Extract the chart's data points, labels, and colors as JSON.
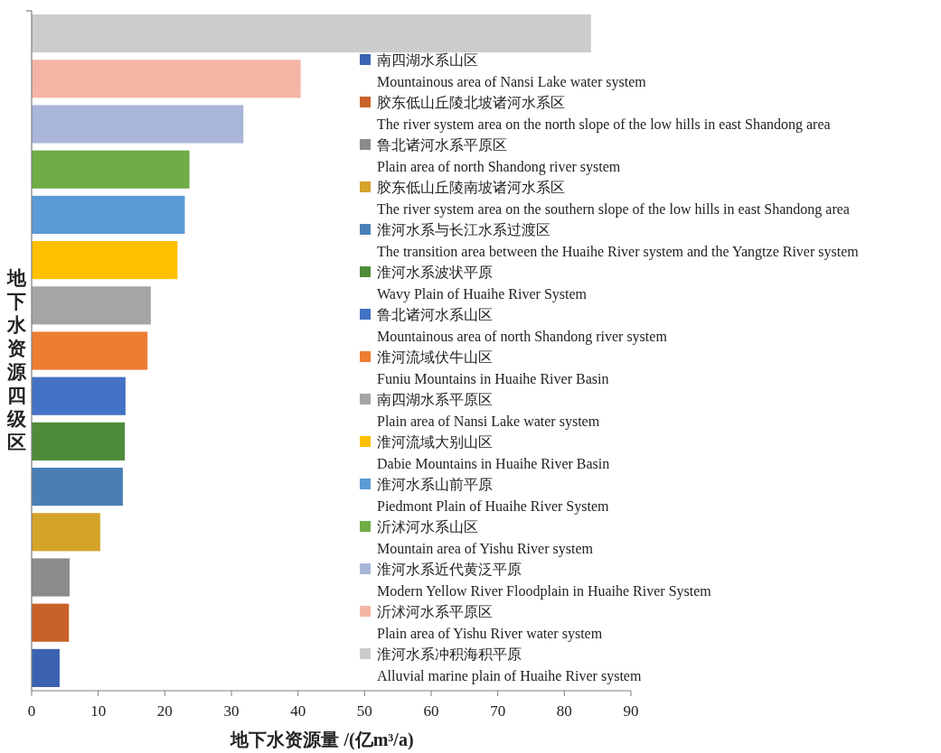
{
  "chart_data": {
    "type": "bar",
    "orientation": "horizontal",
    "xlabel": "地下水资源量 /(亿m³/a)",
    "ylabel": "地下水资源四级区",
    "categories": [
      null,
      null,
      null,
      null,
      null,
      null,
      null,
      null,
      null,
      null,
      null,
      null,
      null,
      null,
      null
    ],
    "xlim": [
      0,
      90
    ],
    "xticks": [
      0,
      10,
      20,
      30,
      40,
      50,
      60,
      70,
      80,
      90
    ],
    "grid": false,
    "legend": "right",
    "series": [
      {
        "name": "南四湖水系山区\nMountainous area of Nansi Lake water system",
        "color": "#3a62b0",
        "values": [
          null,
          null,
          null,
          null,
          null,
          null,
          null,
          null,
          null,
          null,
          null,
          null,
          null,
          null,
          4.2
        ]
      },
      {
        "name": "胶东低山丘陵北坡诸河水系区\nThe river system area on the north slope of the low hills in east Shandong area",
        "color": "#c9622a",
        "values": [
          null,
          null,
          null,
          null,
          null,
          null,
          null,
          null,
          null,
          null,
          null,
          null,
          null,
          5.6,
          null
        ]
      },
      {
        "name": "鲁北诸河水系平原区\nPlain area of north Shandong river system",
        "color": "#8c8c8c",
        "values": [
          null,
          null,
          null,
          null,
          null,
          null,
          null,
          null,
          null,
          null,
          null,
          null,
          5.7,
          null,
          null
        ]
      },
      {
        "name": "胶东低山丘陵南坡诸河水系区\nThe river system area on the southern slope of the low hills in east Shandong area",
        "color": "#d4a32a",
        "values": [
          null,
          null,
          null,
          null,
          null,
          null,
          null,
          null,
          null,
          null,
          null,
          10.3,
          null,
          null,
          null
        ]
      },
      {
        "name": "淮河水系与长江水系过渡区\nThe transition area between the Huaihe River system and the Yangtze River system",
        "color": "#4a7fb5",
        "values": [
          null,
          null,
          null,
          null,
          null,
          null,
          null,
          null,
          null,
          null,
          13.7,
          null,
          null,
          null,
          null
        ]
      },
      {
        "name": "淮河水系波状平原\nWavy Plain of Huaihe River System",
        "color": "#4e8c3a",
        "values": [
          null,
          null,
          null,
          null,
          null,
          null,
          null,
          null,
          null,
          14.0,
          null,
          null,
          null,
          null,
          null
        ]
      },
      {
        "name": "鲁北诸河水系山区\nMountainous area of north Shandong river system",
        "color": "#4472c4",
        "values": [
          null,
          null,
          null,
          null,
          null,
          null,
          null,
          null,
          14.1,
          null,
          null,
          null,
          null,
          null,
          null
        ]
      },
      {
        "name": "淮河流域伏牛山区\nFuniu Mountains in Huaihe River Basin",
        "color": "#ed7d31",
        "values": [
          null,
          null,
          null,
          null,
          null,
          null,
          null,
          17.4,
          null,
          null,
          null,
          null,
          null,
          null,
          null
        ]
      },
      {
        "name": "南四湖水系平原区\nPlain area of Nansi Lake water system",
        "color": "#a5a5a5",
        "values": [
          null,
          null,
          null,
          null,
          null,
          null,
          17.9,
          null,
          null,
          null,
          null,
          null,
          null,
          null,
          null
        ]
      },
      {
        "name": "淮河流域大别山区\nDabie Mountains in Huaihe River Basin",
        "color": "#ffc000",
        "values": [
          null,
          null,
          null,
          null,
          null,
          21.9,
          null,
          null,
          null,
          null,
          null,
          null,
          null,
          null,
          null
        ]
      },
      {
        "name": "淮河水系山前平原\nPiedmont Plain of Huaihe River System",
        "color": "#5b9bd5",
        "values": [
          null,
          null,
          null,
          null,
          23.0,
          null,
          null,
          null,
          null,
          null,
          null,
          null,
          null,
          null,
          null
        ]
      },
      {
        "name": "沂沭河水系山区\nMountain area of Yishu River system",
        "color": "#70ad47",
        "values": [
          null,
          null,
          null,
          23.7,
          null,
          null,
          null,
          null,
          null,
          null,
          null,
          null,
          null,
          null,
          null
        ]
      },
      {
        "name": "淮河水系近代黄泛平原\nModern Yellow River Floodplain in Huaihe River System",
        "color": "#a9b6d9",
        "values": [
          null,
          null,
          31.8,
          null,
          null,
          null,
          null,
          null,
          null,
          null,
          null,
          null,
          null,
          null,
          null
        ]
      },
      {
        "name": "沂沭河水系平原区\nPlain area of Yishu River water system",
        "color": "#f4b5a4",
        "values": [
          null,
          40.4,
          null,
          null,
          null,
          null,
          null,
          null,
          null,
          null,
          null,
          null,
          null,
          null,
          null
        ]
      },
      {
        "name": "淮河水系冲积海积平原\nAlluvial marine plain of Huaihe River system",
        "color": "#cccccc",
        "values": [
          84.0,
          null,
          null,
          null,
          null,
          null,
          null,
          null,
          null,
          null,
          null,
          null,
          null,
          null,
          null
        ]
      }
    ]
  }
}
